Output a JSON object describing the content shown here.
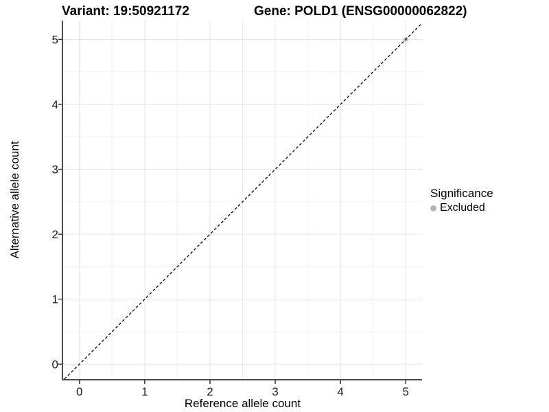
{
  "titles": {
    "variant": "Variant: 19:50921172",
    "gene": "Gene: POLD1 (ENSG00000062822)"
  },
  "chart_data": {
    "type": "scatter",
    "title_left": "Variant: 19:50921172",
    "title_right": "Gene: POLD1 (ENSG00000062822)",
    "xlabel": "Reference allele count",
    "ylabel": "Alternative allele count",
    "xlim": [
      -0.25,
      5.25
    ],
    "ylim": [
      -0.23,
      5.29
    ],
    "x_ticks": [
      0,
      1,
      2,
      3,
      4,
      5
    ],
    "y_ticks": [
      0,
      1,
      2,
      3,
      4,
      5
    ],
    "x_minor": [
      0.5,
      1.5,
      2.5,
      3.5,
      4.5
    ],
    "y_minor": [
      0.5,
      1.5,
      2.5,
      3.5,
      4.5
    ],
    "grid": true,
    "reference_line": {
      "kind": "abline",
      "slope": 1,
      "intercept": 0,
      "linetype": "dashed",
      "color": "#000000"
    },
    "series": [
      {
        "name": "Excluded",
        "color": "#bdbdbd",
        "point_radius": 3.5,
        "points": [
          {
            "x": 5,
            "y": 5
          }
        ]
      }
    ],
    "legend": {
      "position": "right",
      "title": "Significance",
      "entries": [
        {
          "label": "Excluded",
          "color": "#b5b5b5"
        }
      ]
    },
    "style": {
      "grid_major": "#e3e3e3",
      "grid_minor": "#f0f0f0",
      "axis": "#4a4a4a",
      "tick": "#333333",
      "text": "#1a1a1a",
      "line": "#000000",
      "background": "#ffffff"
    }
  }
}
